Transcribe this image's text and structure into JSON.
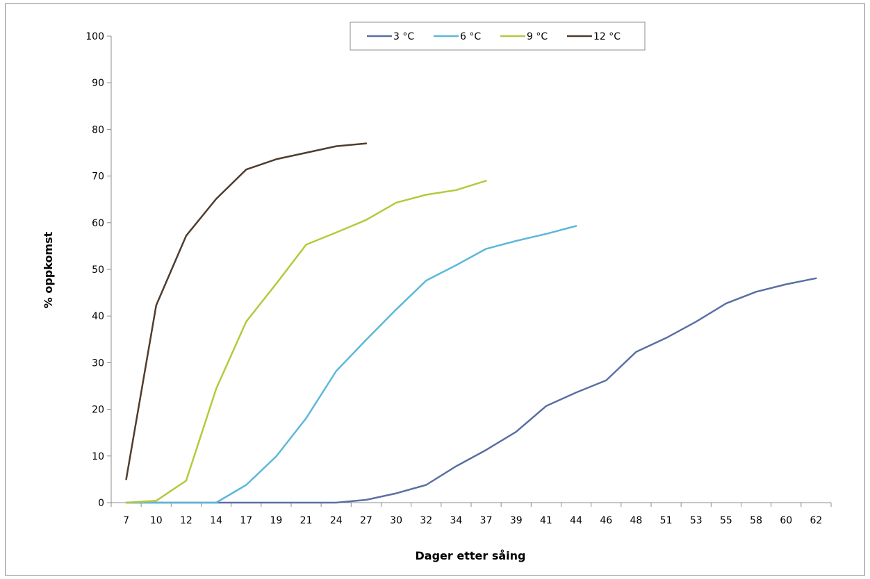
{
  "chart_data": {
    "type": "line",
    "title": "",
    "xlabel": "Dager etter såing",
    "ylabel": "% oppkomst",
    "ylim": [
      0,
      100
    ],
    "yticks": [
      0,
      10,
      20,
      30,
      40,
      50,
      60,
      70,
      80,
      90,
      100
    ],
    "categories": [
      "7",
      "10",
      "12",
      "14",
      "17",
      "19",
      "21",
      "24",
      "27",
      "30",
      "32",
      "34",
      "37",
      "39",
      "41",
      "44",
      "46",
      "48",
      "51",
      "53",
      "55",
      "58",
      "60",
      "62"
    ],
    "grid": false,
    "legend": "top",
    "series": [
      {
        "name": "3 °C",
        "color": "#5a6fa3",
        "values": [
          0,
          0,
          0,
          0,
          0,
          0,
          0,
          0,
          0.6,
          2,
          3.8,
          7.8,
          11.3,
          15.2,
          20.7,
          23.6,
          26.2,
          32.3,
          35.3,
          38.8,
          42.7,
          45.2,
          46.8,
          48.1
        ]
      },
      {
        "name": "6 °C",
        "color": "#5cb8d9",
        "values": [
          0,
          0,
          0,
          0,
          3.8,
          9.9,
          18.1,
          28.2,
          34.9,
          41.4,
          47.6,
          50.9,
          54.4,
          56.1,
          57.6,
          59.3,
          null,
          null,
          null,
          null,
          null,
          null,
          null,
          null
        ]
      },
      {
        "name": "9 °C",
        "color": "#b5c93a",
        "values": [
          0,
          0.4,
          4.7,
          24.4,
          38.8,
          46.9,
          55.3,
          57.9,
          60.6,
          64.3,
          66,
          67,
          69,
          null,
          null,
          null,
          null,
          null,
          null,
          null,
          null,
          null,
          null,
          null
        ]
      },
      {
        "name": "12 °C",
        "color": "#4e3c2e",
        "values": [
          5,
          42.3,
          57.2,
          65.1,
          71.4,
          73.6,
          75,
          76.4,
          77,
          null,
          null,
          null,
          null,
          null,
          null,
          null,
          null,
          null,
          null,
          null,
          null,
          null,
          null,
          null
        ]
      }
    ]
  }
}
